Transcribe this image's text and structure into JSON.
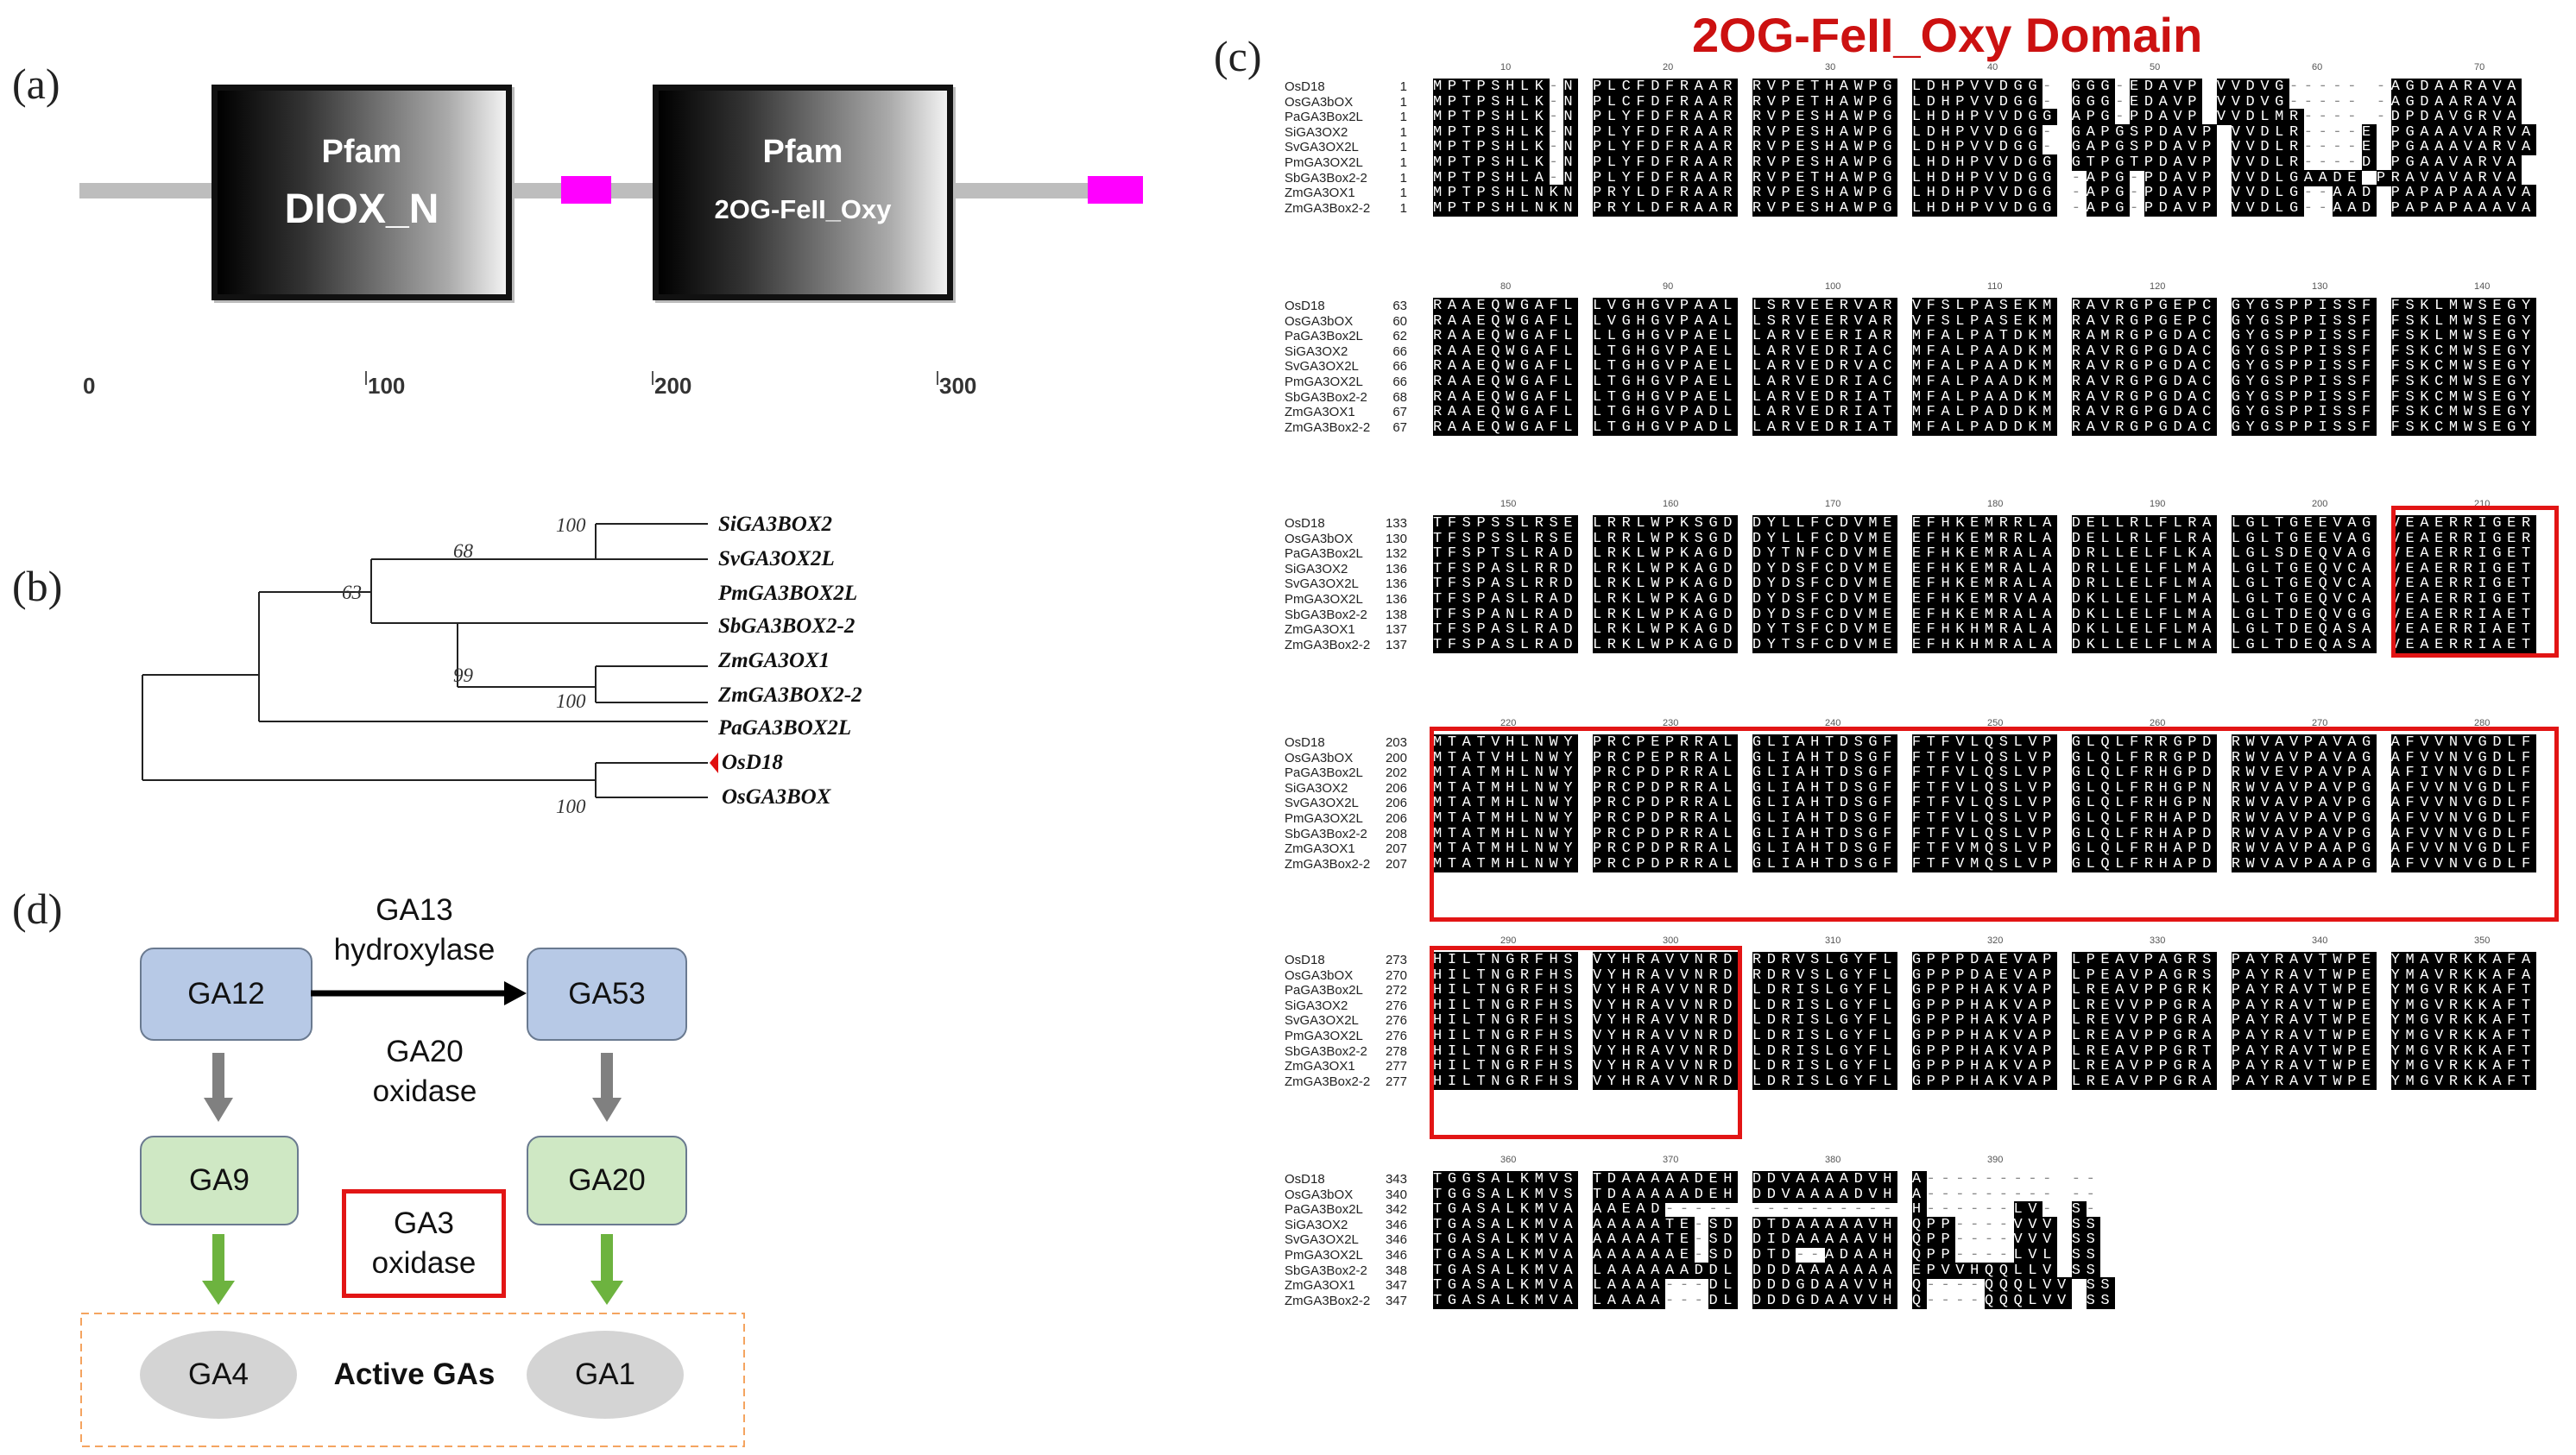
{
  "panels": {
    "a": "(a)",
    "b": "(b)",
    "c": "(c)",
    "d": "(d)"
  },
  "panel_a": {
    "domains": [
      {
        "db": "Pfam",
        "name": "DIOX_N"
      },
      {
        "db": "Pfam",
        "name": "2OG-FeII_Oxy"
      }
    ],
    "axis_ticks": [
      "0",
      "100",
      "200",
      "300"
    ],
    "colors": {
      "backbone": "#bdbdbd",
      "motif": "#ff00ff"
    }
  },
  "panel_b": {
    "leaves": [
      "SiGA3BOX2",
      "SvGA3OX2L",
      "PmGA3BOX2L",
      "SbGA3BOX2-2",
      "ZmGA3OX1",
      "ZmGA3BOX2-2",
      "PaGA3BOX2L",
      "OsD18",
      "OsGA3BOX"
    ],
    "bootstrap": [
      "100",
      "68",
      "63",
      "99",
      "100",
      "100"
    ],
    "marker_color": "#e01010"
  },
  "panel_c": {
    "title": "2OG-FeII_Oxy Domain",
    "blocks": [
      {
        "ruler": [
          "10",
          "20",
          "30",
          "40",
          "50",
          "60",
          "70"
        ],
        "names": [
          "OsD18",
          "OsGA3bOX",
          "PaGA3Box2L",
          "SiGA3OX2",
          "SvGA3OX2L",
          "PmGA3OX2L",
          "SbGA3Box2-2",
          "ZmGA3OX1",
          "ZmGA3Box2-2"
        ],
        "starts": [
          "1",
          "1",
          "1",
          "1",
          "1",
          "1",
          "1",
          "1",
          "1"
        ],
        "rows": [
          "MPTPSHLK-N PLCFDFRAAR RVPETHAWPG LDHPVVDGG- GGG-EDAVP VVDVG----- -AGDAARAVA",
          "MPTPSHLK-N PLCFDFRAAR RVPETHAWPG LDHPVVDGG- GGG-EDAVP VVDVG----- -AGDAARAVA",
          "MPTPSHLK-N PLYFDFRAAR RVPESHAWPG LHDHPVVDGG APG-PDAVP VVDLMR---- -DPDAVGRVA",
          "MPTPSHLK-N PLYFDFRAAR RVPESHAWPG LDHPVVDGG- GAPGSPDAVP VVDLR----E PGAAAVARVA",
          "MPTPSHLK-N PLYFDFRAAR RVPESHAWPG LDHPVVDGG- GAPGSPDAVP VVDLR----E PGAAAVARVA",
          "MPTPSHLK-N PLYFDFRAAR RVPESHAWPG LHDHPVVDGG GTPGTPDAVP VVDLR----D PGAAVARVA",
          "MPTPSHLA-N PLYFDFRAAR RVPETHAWPG LHDHPVVDGG -APG-PDAVP VVDLGAADE PRAVAVARVA",
          "MPTPSHLNKN PRYLDFRAAR RVPESHAWPG LHDHPVVDGG -APG-PDAVP VVDLG--AAD PAPAPAAAVA",
          "MPTPSHLNKN PRYLDFRAAR RVPESHAWPG LHDHPVVDGG -APG-PDAVP VVDLG--AAD PAPAPAAAVA"
        ]
      },
      {
        "ruler": [
          "80",
          "90",
          "100",
          "110",
          "120",
          "130",
          "140"
        ],
        "names": [
          "OsD18",
          "OsGA3bOX",
          "PaGA3Box2L",
          "SiGA3OX2",
          "SvGA3OX2L",
          "PmGA3OX2L",
          "SbGA3Box2-2",
          "ZmGA3OX1",
          "ZmGA3Box2-2"
        ],
        "starts": [
          "63",
          "60",
          "62",
          "66",
          "66",
          "66",
          "68",
          "67",
          "67"
        ],
        "rows": [
          "RAAEQWGAFL LVGHGVPAAL LSRVEERVAR VFSLPASEKM RAVRGPGEPC GYGSPPISSF FSKLMWSEGY",
          "RAAEQWGAFL LVGHGVPAAL LSRVEERVAR VFSLPASEKM RAVRGPGEPC GYGSPPISSF FSKLMWSEGY",
          "RAAEQWGAFL LLGHGVPAEL LARVEERIAR MFALPATDKM RAMRGPGDAC GYGSPPISSF FSKLMWSEGY",
          "RAAEQWGAFL LTGHGVPAEL LARVEDRIAC MFALPAADKM RAVRGPGDAC GYGSPPISSF FSKCMWSEGY",
          "RAAEQWGAFL LTGHGVPAEL LARVEDRVAC MFALPAADKM RAVRGPGDAC GYGSPPISSF FSKCMWSEGY",
          "RAAEQWGAFL LTGHGVPAEL LARVEDRIAC MFALPAADKM RAVRGPGDAC GYGSPPISSF FSKCMWSEGY",
          "RAAEQWGAFL LTGHGVPAEL LARVEDRIAT MFALPAADKM RAVRGPGDAC GYGSPPISSF FSKCMWSEGY",
          "RAAEQWGAFL LTGHGVPADL LARVEDRIAT MFALPADDKM RAVRGPGDAC GYGSPPISSF FSKCMWSEGY",
          "RAAEQWGAFL LTGHGVPADL LARVEDRIAT MFALPADDKM RAVRGPGDAC GYGSPPISSF FSKCMWSEGY"
        ]
      },
      {
        "ruler": [
          "150",
          "160",
          "170",
          "180",
          "190",
          "200",
          "210"
        ],
        "names": [
          "OsD18",
          "OsGA3bOX",
          "PaGA3Box2L",
          "SiGA3OX2",
          "SvGA3OX2L",
          "PmGA3OX2L",
          "SbGA3Box2-2",
          "ZmGA3OX1",
          "ZmGA3Box2-2"
        ],
        "starts": [
          "133",
          "130",
          "132",
          "136",
          "136",
          "136",
          "138",
          "137",
          "137"
        ],
        "rows": [
          "TFSPSSLRSE LRRLWPKSGD DYLLFCDVME EFHKEMRRLA DELLRLFLRA LGLTGEEVAG VEAERRIGER",
          "TFSPSSLRSE LRRLWPKSGD DYLLFCDVME EFHKEMRRLA DELLRLFLRA LGLTGEEVAG VEAERRIGER",
          "TFSPTSLRAD LRKLWPKAGD DYTNFCDVME EFHKEMRALA DRLLELFLKA LGLSDEQVAG VEAERRIGET",
          "TFSPASLRRD LRKLWPKAGD DYDSFCDVME EFHKEMRALA DRLLELFLMA LGLTGEQVCA VEAERRIGET",
          "TFSPASLRRD LRKLWPKAGD DYDSFCDVME EFHKEMRALA DRLLELFLMA LGLTGEQVCA VEAERRIGET",
          "TFSPASLRAD LRKLWPKAGD DYDSFCDVME EFHKEMRVAA DKLLELFLMA LGLTGEQVCA VEAERRIGET",
          "TFSPANLRAD LRKLWPKAGD DYDSFCDVME EFHKEMRALA DKLLELFLMA LGLTDEQVGG VEAERRIAET",
          "TFSPASLRAD LRKLWPKAGD DYTSFCDVME EFHKHMRALA DKLLELFLMA LGLTDEQASA VEAERRIAET",
          "TFSPASLRAD LRKLWPKAGD DYTSFCDVME EFHKHMRALA DKLLELFLMA LGLTDEQASA VEAERRIAET"
        ]
      },
      {
        "ruler": [
          "220",
          "230",
          "240",
          "250",
          "260",
          "270",
          "280"
        ],
        "names": [
          "OsD18",
          "OsGA3bOX",
          "PaGA3Box2L",
          "SiGA3OX2",
          "SvGA3OX2L",
          "PmGA3OX2L",
          "SbGA3Box2-2",
          "ZmGA3OX1",
          "ZmGA3Box2-2"
        ],
        "starts": [
          "203",
          "200",
          "202",
          "206",
          "206",
          "206",
          "208",
          "207",
          "207"
        ],
        "rows": [
          "MTATVHLNWY PRCPEPRRAL GLIAHTDSGF FTFVLQSLVP GLQLFRRGPD RWVAVPAVAG AFVVNVGDLF",
          "MTATVHLNWY PRCPEPRRAL GLIAHTDSGF FTFVLQSLVP GLQLFRRGPD RWVAVPAVAG AFVVNVGDLF",
          "MTATMHLNWY PRCPDPRRAL GLIAHTDSGF FTFVLQSLVP GLQLFRHGPD RWVEVPAVPA AFIVNVGDLF",
          "MTATMHLNWY PRCPDPRRAL GLIAHTDSGF FTFVLQSLVP GLQLFRHGPN RWVAVPAVPG AFVVNVGDLF",
          "MTATMHLNWY PRCPDPRRAL GLIAHTDSGF FTFVLQSLVP GLQLFRHGPN RWVAVPAVPG AFVVNVGDLF",
          "MTATMHLNWY PRCPDPRRAL GLIAHTDSGF FTFVLQSLVP GLQLFRHAPD RWVAVPAVPG AFVVNVGDLF",
          "MTATMHLNWY PRCPDPRRAL GLIAHTDSGF FTFVLQSLVP GLQLFRHAPD RWVAVPAVPG AFVVNVGDLF",
          "MTATMHLNWY PRCPDPRRAL GLIAHTDSGF FTFVMQSLVP GLQLFRHAPD RWVAVPAAPG AFVVNVGDLF",
          "MTATMHLNWY PRCPDPRRAL GLIAHTDSGF FTFVMQSLVP GLQLFRHAPD RWVAVPAAPG AFVVNVGDLF"
        ]
      },
      {
        "ruler": [
          "290",
          "300",
          "310",
          "320",
          "330",
          "340",
          "350"
        ],
        "names": [
          "OsD18",
          "OsGA3bOX",
          "PaGA3Box2L",
          "SiGA3OX2",
          "SvGA3OX2L",
          "PmGA3OX2L",
          "SbGA3Box2-2",
          "ZmGA3OX1",
          "ZmGA3Box2-2"
        ],
        "starts": [
          "273",
          "270",
          "272",
          "276",
          "276",
          "276",
          "278",
          "277",
          "277"
        ],
        "rows": [
          "HILTNGRFHS VYHRAVVNRD RDRVSLGYFL GPPPDAEVAP LPEAVPAGRS PAYRAVTWPE YMAVRKKAFA",
          "HILTNGRFHS VYHRAVVNRD RDRVSLGYFL GPPPDAEVAP LPEAVPAGRS PAYRAVTWPE YMAVRKKAFA",
          "HILTNGRFHS VYHRAVVNRD LDRISLGYFL GPPPHAKVAP LREAVPPGRK PAYRAVTWPE YMGVRKKAFT",
          "HILTNGRFHS VYHRAVVNRD LDRISLGYFL GPPPHAKVAP LREVVPPGRA PAYRAVTWPE YMGVRKKAFT",
          "HILTNGRFHS VYHRAVVNRD LDRISLGYFL GPPPHAKVAP LREVVPPGRA PAYRAVTWPE YMGVRKKAFT",
          "HILTNGRFHS VYHRAVVNRD LDRISLGYFL GPPPHAKVAP LREAVPPGRA PAYRAVTWPE YMGVRKKAFT",
          "HILTNGRFHS VYHRAVVNRD LDRISLGYFL GPPPHAKVAP LREAVPPGRT PAYRAVTWPE YMGVRKKAFT",
          "HILTNGRFHS VYHRAVVNRD LDRISLGYFL GPPPHAKVAP LREAVPPGRA PAYRAVTWPE YMGVRKKAFT",
          "HILTNGRFHS VYHRAVVNRD LDRISLGYFL GPPPHAKVAP LREAVPPGRA PAYRAVTWPE YMGVRKKAFT"
        ]
      },
      {
        "ruler": [
          "360",
          "370",
          "380",
          "390"
        ],
        "names": [
          "OsD18",
          "OsGA3bOX",
          "PaGA3Box2L",
          "SiGA3OX2",
          "SvGA3OX2L",
          "PmGA3OX2L",
          "SbGA3Box2-2",
          "ZmGA3OX1",
          "ZmGA3Box2-2"
        ],
        "starts": [
          "343",
          "340",
          "342",
          "346",
          "346",
          "346",
          "348",
          "347",
          "347"
        ],
        "rows": [
          "TGGSALKMVS TDAAAAADEH DDVAAAADVH A--------- --",
          "TGGSALKMVS TDAAAAADEH DDVAAAADVH A--------- --",
          "TGASALKMVA AAEAD----- ---------- H------LV- S-",
          "TGASALKMVA AAAAATE-SD DTDAAAAAVH QPP----VVV SS",
          "TGASALKMVA AAAAATE-SD DIDAAAAAVH QPP----VVV SS",
          "TGASALKMVA AAAAAAE-SD DTD--ADAAH QPP----LVL SS",
          "TGASALKMVA LAAAAAADDL DDDAAAAAAA EPVVHQQLLV SS",
          "TGASALKMVA LAAAA---DL DDDGDAAVVH Q----QQQLVV SS",
          "TGASALKMVA LAAAA---DL DDDGDAAVVH Q----QQQLVV SS"
        ]
      }
    ]
  },
  "panel_d": {
    "nodes": {
      "ga12": "GA12",
      "ga53": "GA53",
      "ga9": "GA9",
      "ga20": "GA20",
      "ga4": "GA4",
      "ga1": "GA1"
    },
    "enzymes": {
      "hydroxylase_line1": "GA13",
      "hydroxylase_line2": "hydroxylase",
      "ga20ox_line1": "GA20",
      "ga20ox_line2": "oxidase",
      "ga3ox_line1": "GA3",
      "ga3ox_line2": "oxidase"
    },
    "active_label": "Active GAs",
    "colors": {
      "blue": "#b7c9e6",
      "green": "#cfe8c4",
      "arrow_green": "#6db33f",
      "arrow_gray": "#808080",
      "dash": "#f4a460",
      "red": "#e21515"
    }
  }
}
